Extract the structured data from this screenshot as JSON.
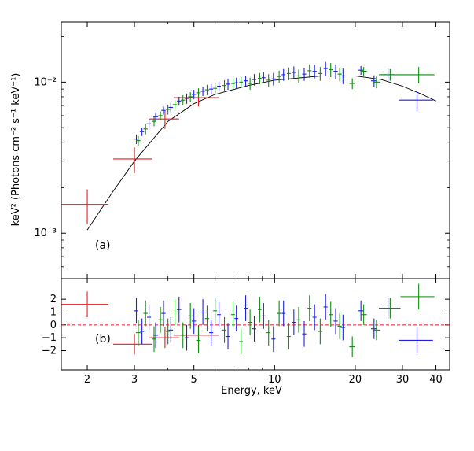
{
  "chart_data": {
    "type": "scatter",
    "xlabel": "Energy, keV",
    "x_scale": "log",
    "xlim": [
      1.6,
      45
    ],
    "x_ticks": [
      2,
      3,
      5,
      10,
      20,
      30,
      40
    ],
    "x_tick_labels": [
      "2",
      "3",
      "5",
      "10",
      "20",
      "30",
      "40"
    ],
    "colors": {
      "red": "#e8191b",
      "blue": "#1f1fe6",
      "green": "#128a12",
      "model": "#000000",
      "zero": "#e8191b"
    },
    "panels": [
      {
        "name": "a",
        "label": "(a)",
        "ylabel": "keV² (Photons  cm⁻² s⁻¹ keV⁻¹)",
        "y_scale": "log",
        "ylim": [
          0.0005,
          0.025
        ],
        "y_tick_labels": [
          "10⁻³",
          "10⁻²"
        ],
        "y_ticks": [
          0.001,
          0.01
        ],
        "model_curve": [
          [
            2.0,
            0.00105
          ],
          [
            2.5,
            0.0019
          ],
          [
            3.0,
            0.003
          ],
          [
            4.0,
            0.0055
          ],
          [
            5.0,
            0.0072
          ],
          [
            6.0,
            0.0083
          ],
          [
            8.0,
            0.0095
          ],
          [
            10.0,
            0.0103
          ],
          [
            15.0,
            0.011
          ],
          [
            20.0,
            0.011
          ],
          [
            25.0,
            0.0104
          ],
          [
            30.0,
            0.0094
          ],
          [
            35.0,
            0.0084
          ],
          [
            40.0,
            0.0075
          ]
        ],
        "series": [
          {
            "color": "red",
            "points": [
              [
                2.0,
                0.00155,
                0.4,
                0.0004
              ],
              [
                3.0,
                0.0031,
                0.5,
                0.0006
              ],
              [
                3.9,
                0.0057,
                0.5,
                0.0008
              ],
              [
                5.2,
                0.0079,
                1.0,
                0.001
              ]
            ]
          },
          {
            "color": "blue",
            "points": [
              [
                3.05,
                0.0042,
                0.05,
                0.0003
              ],
              [
                3.2,
                0.0047,
                0.06,
                0.0003
              ],
              [
                3.4,
                0.0053,
                0.06,
                0.0004
              ],
              [
                3.6,
                0.0059,
                0.07,
                0.0004
              ],
              [
                3.85,
                0.0065,
                0.07,
                0.0004
              ],
              [
                4.1,
                0.0068,
                0.08,
                0.0005
              ],
              [
                4.4,
                0.0075,
                0.08,
                0.0005
              ],
              [
                4.7,
                0.0078,
                0.09,
                0.0006
              ],
              [
                5.0,
                0.0083,
                0.09,
                0.0006
              ],
              [
                5.4,
                0.0087,
                0.1,
                0.0006
              ],
              [
                5.8,
                0.009,
                0.1,
                0.0007
              ],
              [
                6.2,
                0.0094,
                0.1,
                0.0007
              ],
              [
                6.7,
                0.0097,
                0.12,
                0.0008
              ],
              [
                7.2,
                0.0099,
                0.12,
                0.0008
              ],
              [
                7.8,
                0.0102,
                0.13,
                0.0008
              ],
              [
                8.4,
                0.0104,
                0.14,
                0.0009
              ],
              [
                9.1,
                0.0107,
                0.15,
                0.0009
              ],
              [
                9.9,
                0.0105,
                0.17,
                0.001
              ],
              [
                10.8,
                0.0112,
                0.18,
                0.001
              ],
              [
                11.8,
                0.0116,
                0.2,
                0.0011
              ],
              [
                12.9,
                0.0113,
                0.22,
                0.0011
              ],
              [
                14.1,
                0.0118,
                0.24,
                0.0012
              ],
              [
                15.5,
                0.0123,
                0.27,
                0.0013
              ],
              [
                16.9,
                0.0118,
                0.3,
                0.0013
              ],
              [
                18.0,
                0.011,
                0.35,
                0.0013
              ],
              [
                21.0,
                0.012,
                0.5,
                0.0008
              ],
              [
                23.5,
                0.0102,
                0.6,
                0.0009
              ],
              [
                26.5,
                0.0112,
                1.5,
                0.001
              ],
              [
                34.0,
                0.0076,
                5.0,
                0.0012
              ]
            ]
          },
          {
            "color": "green",
            "points": [
              [
                3.1,
                0.0041,
                0.06,
                0.0003
              ],
              [
                3.3,
                0.0049,
                0.06,
                0.0004
              ],
              [
                3.55,
                0.0055,
                0.07,
                0.0004
              ],
              [
                3.75,
                0.006,
                0.07,
                0.0004
              ],
              [
                4.0,
                0.0066,
                0.07,
                0.0005
              ],
              [
                4.25,
                0.0071,
                0.08,
                0.0005
              ],
              [
                4.55,
                0.0076,
                0.08,
                0.0006
              ],
              [
                4.85,
                0.008,
                0.09,
                0.0006
              ],
              [
                5.2,
                0.0085,
                0.1,
                0.0006
              ],
              [
                5.6,
                0.0089,
                0.1,
                0.0007
              ],
              [
                6.0,
                0.0091,
                0.1,
                0.0007
              ],
              [
                6.5,
                0.0095,
                0.11,
                0.0008
              ],
              [
                7.0,
                0.0098,
                0.12,
                0.0008
              ],
              [
                7.5,
                0.01,
                0.12,
                0.0008
              ],
              [
                8.1,
                0.0098,
                0.13,
                0.0009
              ],
              [
                8.8,
                0.0106,
                0.14,
                0.0009
              ],
              [
                9.5,
                0.0103,
                0.16,
                0.001
              ],
              [
                10.4,
                0.0109,
                0.17,
                0.001
              ],
              [
                11.3,
                0.0114,
                0.19,
                0.0011
              ],
              [
                12.3,
                0.011,
                0.21,
                0.0011
              ],
              [
                13.5,
                0.0119,
                0.23,
                0.0012
              ],
              [
                14.8,
                0.0114,
                0.25,
                0.0012
              ],
              [
                16.2,
                0.0121,
                0.28,
                0.0013
              ],
              [
                17.5,
                0.0113,
                0.3,
                0.0012
              ],
              [
                19.5,
                0.0098,
                0.5,
                0.0008
              ],
              [
                21.5,
                0.0118,
                0.6,
                0.0008
              ],
              [
                24.0,
                0.01,
                0.8,
                0.0009
              ],
              [
                27.0,
                0.0112,
                2.5,
                0.001
              ],
              [
                34.5,
                0.0112,
                5.0,
                0.0014
              ]
            ]
          }
        ]
      },
      {
        "name": "b",
        "label": "(b)",
        "ylabel": "",
        "y_scale": "linear",
        "ylim": [
          -3.5,
          3.6
        ],
        "y_ticks": [
          2,
          1,
          0,
          -1,
          -2
        ],
        "y_tick_labels": [
          "2",
          "1",
          "0",
          "−1",
          "−2"
        ],
        "zero_line": 0,
        "series": [
          {
            "color": "red",
            "points": [
              [
                2.0,
                1.6,
                0.4,
                1.0
              ],
              [
                3.0,
                -1.5,
                0.5,
                0.8
              ],
              [
                3.9,
                -1.0,
                0.5,
                0.8
              ],
              [
                5.2,
                -0.8,
                1.0,
                0.8
              ]
            ]
          },
          {
            "color": "blue",
            "points": [
              [
                3.05,
                1.1,
                0.05,
                1.0
              ],
              [
                3.2,
                -0.5,
                0.06,
                1.0
              ],
              [
                3.4,
                0.6,
                0.06,
                1.0
              ],
              [
                3.6,
                -0.8,
                0.07,
                1.0
              ],
              [
                3.85,
                0.9,
                0.07,
                1.0
              ],
              [
                4.1,
                -0.4,
                0.08,
                1.0
              ],
              [
                4.4,
                1.2,
                0.08,
                1.0
              ],
              [
                4.7,
                -1.0,
                0.09,
                1.0
              ],
              [
                5.0,
                0.3,
                0.09,
                1.0
              ],
              [
                5.4,
                1.0,
                0.1,
                1.0
              ],
              [
                5.8,
                -0.6,
                0.1,
                1.0
              ],
              [
                6.2,
                0.8,
                0.1,
                1.0
              ],
              [
                6.7,
                -0.9,
                0.12,
                1.0
              ],
              [
                7.2,
                0.5,
                0.12,
                1.0
              ],
              [
                7.8,
                1.3,
                0.13,
                1.0
              ],
              [
                8.4,
                -0.3,
                0.14,
                1.0
              ],
              [
                9.1,
                0.7,
                0.15,
                1.0
              ],
              [
                9.9,
                -1.1,
                0.17,
                1.0
              ],
              [
                10.8,
                0.9,
                0.18,
                1.0
              ],
              [
                11.8,
                0.2,
                0.2,
                1.0
              ],
              [
                12.9,
                -0.7,
                0.22,
                1.0
              ],
              [
                14.1,
                0.6,
                0.24,
                1.0
              ],
              [
                15.5,
                1.4,
                0.27,
                1.0
              ],
              [
                16.9,
                0.3,
                0.3,
                1.0
              ],
              [
                18.0,
                -0.2,
                0.35,
                1.0
              ],
              [
                21.0,
                1.1,
                0.5,
                0.8
              ],
              [
                23.5,
                -0.3,
                0.6,
                0.8
              ],
              [
                26.5,
                1.3,
                1.5,
                0.8
              ],
              [
                34.0,
                -1.2,
                5.0,
                1.0
              ]
            ]
          },
          {
            "color": "green",
            "points": [
              [
                3.1,
                -0.6,
                0.06,
                1.0
              ],
              [
                3.3,
                0.9,
                0.06,
                1.0
              ],
              [
                3.55,
                -1.1,
                0.07,
                1.0
              ],
              [
                3.75,
                0.4,
                0.07,
                1.0
              ],
              [
                4.0,
                -0.5,
                0.07,
                1.0
              ],
              [
                4.25,
                1.0,
                0.08,
                1.0
              ],
              [
                4.55,
                -0.8,
                0.08,
                1.0
              ],
              [
                4.85,
                0.7,
                0.09,
                1.0
              ],
              [
                5.2,
                -1.2,
                0.1,
                1.0
              ],
              [
                5.6,
                0.5,
                0.1,
                1.0
              ],
              [
                6.0,
                1.1,
                0.1,
                1.0
              ],
              [
                6.5,
                -0.4,
                0.11,
                1.0
              ],
              [
                7.0,
                0.8,
                0.12,
                1.0
              ],
              [
                7.5,
                -1.3,
                0.12,
                1.0
              ],
              [
                8.1,
                0.2,
                0.13,
                1.0
              ],
              [
                8.8,
                1.2,
                0.14,
                1.0
              ],
              [
                9.5,
                -0.6,
                0.16,
                1.0
              ],
              [
                10.4,
                0.9,
                0.17,
                1.0
              ],
              [
                11.3,
                -0.9,
                0.19,
                1.0
              ],
              [
                12.3,
                0.4,
                0.21,
                1.0
              ],
              [
                13.5,
                1.3,
                0.23,
                1.0
              ],
              [
                14.8,
                -0.5,
                0.25,
                1.0
              ],
              [
                16.2,
                0.8,
                0.28,
                1.0
              ],
              [
                17.5,
                -0.1,
                0.3,
                1.0
              ],
              [
                19.5,
                -1.7,
                0.5,
                0.8
              ],
              [
                21.5,
                0.8,
                0.6,
                0.8
              ],
              [
                24.0,
                -0.4,
                0.8,
                0.8
              ],
              [
                27.0,
                1.3,
                2.5,
                0.8
              ],
              [
                34.5,
                2.2,
                5.0,
                1.0
              ]
            ]
          }
        ]
      }
    ]
  }
}
